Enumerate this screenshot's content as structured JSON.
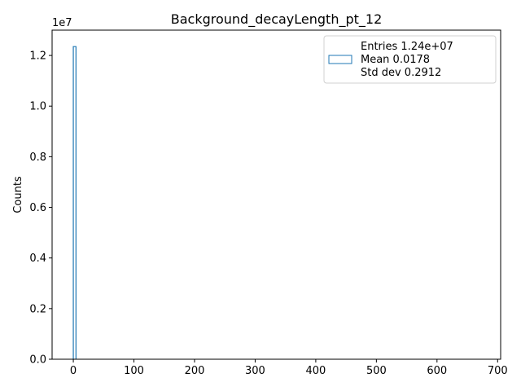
{
  "chart_data": {
    "type": "bar",
    "title": "Background_decayLength_pt_12",
    "xlabel": "",
    "ylabel": "Counts",
    "y_multiplier_label": "1e7",
    "xlim": [
      -35,
      705
    ],
    "ylim": [
      0,
      1.3
    ],
    "x_ticks": [
      0,
      100,
      200,
      300,
      400,
      500,
      600,
      700
    ],
    "x_tick_labels": [
      "0",
      "100",
      "200",
      "300",
      "400",
      "500",
      "600",
      "700"
    ],
    "y_ticks": [
      0,
      0.2,
      0.4,
      0.6,
      0.8,
      1.0,
      1.2
    ],
    "y_tick_labels": [
      "0.0",
      "0.2",
      "0.4",
      "0.6",
      "0.8",
      "1.0",
      "1.2"
    ],
    "bins": [
      {
        "x0": 0,
        "x1": 4.4,
        "value": 1.235
      }
    ],
    "series": [
      {
        "name": "",
        "color": "#1f77b4",
        "style": "step"
      }
    ],
    "legend": {
      "placement": "top-right",
      "lines": [
        "Entries 1.24e+07",
        "Mean 0.0178",
        "Std dev 0.2912"
      ]
    },
    "grid": false
  }
}
